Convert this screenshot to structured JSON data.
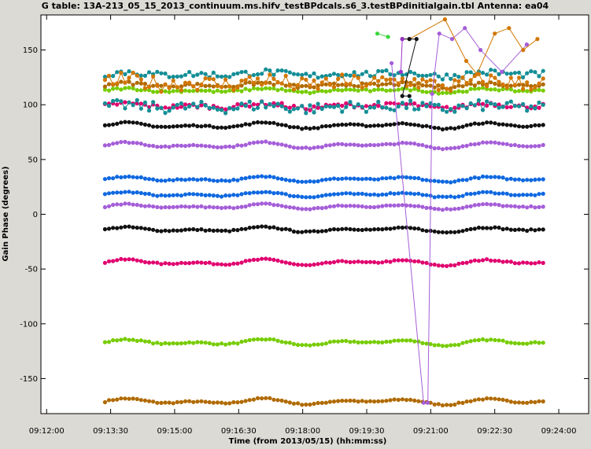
{
  "chart_data": {
    "type": "scatter",
    "title": "G table: 13A-213_05_15_2013_continuum.ms.hifv_testBPdcals.s6_3.testBPdinitialgain.tbl   Antenna: ea04",
    "xlabel": "Time (from 2013/05/15) (hh:mm:ss)",
    "ylabel": "Gain Phase (degrees)",
    "x_ticks": [
      "09:12:00",
      "09:13:30",
      "09:15:00",
      "09:16:30",
      "09:18:00",
      "09:19:30",
      "09:21:00",
      "09:22:30",
      "09:24:00"
    ],
    "y_ticks": [
      150,
      100,
      50,
      0,
      -50,
      -100,
      -150
    ],
    "xlim": [
      "09:11:52",
      "09:24:42"
    ],
    "ylim": [
      -182,
      182
    ],
    "x_start": "09:13:22",
    "x_end": "09:23:38",
    "grid": false,
    "legend": "none",
    "series": [
      {
        "color": "#b06a00",
        "base": -171,
        "amp": 3,
        "noise": 0.6
      },
      {
        "color": "#76cc00",
        "base": -117,
        "amp": 3,
        "noise": 0.6
      },
      {
        "color": "#e0006e",
        "base": -44,
        "amp": 3,
        "noise": 0.6
      },
      {
        "color": "#111111",
        "base": -14,
        "amp": 2.5,
        "noise": 0.6
      },
      {
        "color": "#a55ed8",
        "base": 7,
        "amp": 2.5,
        "noise": 0.6
      },
      {
        "color": "#0f68e0",
        "base": 18,
        "amp": 2.5,
        "noise": 0.6
      },
      {
        "color": "#0f68e0",
        "base": 32,
        "amp": 2.5,
        "noise": 0.6
      },
      {
        "color": "#a55ed8",
        "base": 63,
        "amp": 3,
        "noise": 0.6
      },
      {
        "color": "#111111",
        "base": 81,
        "amp": 3,
        "noise": 0.6
      },
      {
        "color": "#e0006e",
        "base": 99,
        "amp": 2.5,
        "noise": 2
      },
      {
        "color": "#148e96",
        "base": 98,
        "amp": 2,
        "noise": 5
      },
      {
        "color": "#76cc00",
        "base": 113,
        "amp": 2,
        "noise": 1
      },
      {
        "color": "#b06a00",
        "base": 118,
        "amp": 2,
        "noise": 1.5
      },
      {
        "color": "#148e96",
        "base": 128,
        "amp": 2,
        "noise": 3
      },
      {
        "color": "#d27600",
        "base": 120,
        "amp": 3,
        "noise": 7
      }
    ],
    "outliers": [
      {
        "color": "#a55ed8",
        "points": [
          [
            "09:20:05",
            138
          ],
          [
            "09:20:50",
            -172
          ],
          [
            "09:20:56",
            -172
          ],
          [
            "09:21:02",
            110
          ],
          [
            "09:21:12",
            165
          ],
          [
            "09:21:30",
            160
          ],
          [
            "09:21:48",
            170
          ],
          [
            "09:22:10",
            150
          ],
          [
            "09:22:40",
            130
          ],
          [
            "09:23:15",
            155
          ]
        ]
      },
      {
        "color": "#d27600",
        "points": [
          [
            "09:20:30",
            160
          ],
          [
            "09:21:20",
            178
          ],
          [
            "09:21:50",
            140
          ],
          [
            "09:22:05",
            128
          ],
          [
            "09:22:30",
            165
          ],
          [
            "09:22:50",
            170
          ],
          [
            "09:23:10",
            150
          ],
          [
            "09:23:30",
            160
          ]
        ]
      },
      {
        "color": "#111111",
        "points": [
          [
            "09:20:20",
            160
          ],
          [
            "09:20:30",
            160
          ],
          [
            "09:20:40",
            160
          ],
          [
            "09:20:20",
            108
          ],
          [
            "09:20:30",
            108
          ]
        ]
      },
      {
        "color": "#3bd63b",
        "points": [
          [
            "09:19:45",
            165
          ],
          [
            "09:20:00",
            162
          ]
        ]
      },
      {
        "color": "#9a32c8",
        "points": [
          [
            "09:20:20",
            160
          ],
          [
            "09:20:18",
            130
          ]
        ]
      }
    ]
  }
}
